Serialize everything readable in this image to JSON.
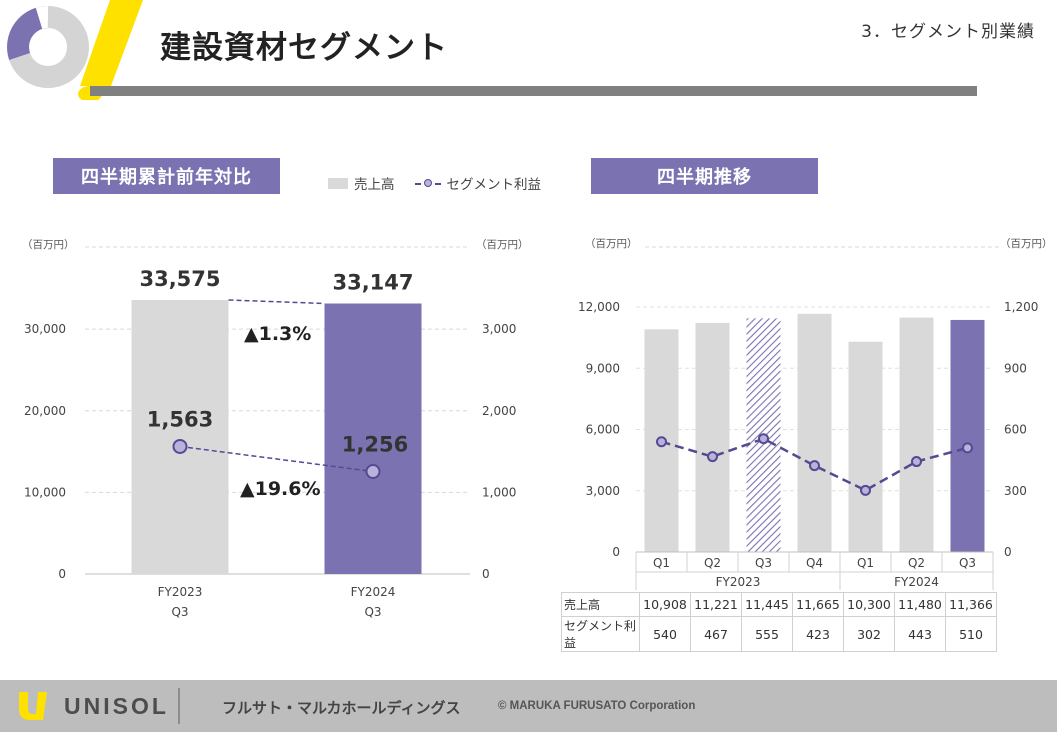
{
  "header": {
    "title": "建設資材セグメント",
    "section": "3．セグメント別業績"
  },
  "left_panel": {
    "label": "四半期累計前年対比",
    "legend": {
      "sales": "売上高",
      "profit": "セグメント利益"
    },
    "unit_left": "（百万円）",
    "unit_right": "（百万円）",
    "change_sales": "▲1.3%",
    "change_profit": "▲19.6%"
  },
  "right_panel": {
    "label": "四半期推移",
    "unit_left": "（百万円）",
    "unit_right": "（百万円）",
    "table": {
      "row1_label": "売上高",
      "row2_label": "セグメント利益"
    }
  },
  "chart_data": [
    {
      "type": "bar",
      "title": "四半期累計前年対比",
      "categories": [
        "FY2023 Q3",
        "FY2024 Q3"
      ],
      "category_lines": [
        [
          "FY2023",
          "Q3"
        ],
        [
          "FY2024",
          "Q3"
        ]
      ],
      "series": [
        {
          "name": "売上高",
          "axis": "left",
          "values": [
            33575,
            33147
          ],
          "labels": [
            "33,575",
            "33,147"
          ]
        },
        {
          "name": "セグメント利益",
          "type": "line",
          "axis": "right",
          "values": [
            1563,
            1256
          ],
          "labels": [
            "1,563",
            "1,256"
          ]
        }
      ],
      "ylim": [
        0,
        33575
      ],
      "yticks": [
        0,
        10000,
        20000,
        30000
      ],
      "ytick_labels": [
        "0",
        "10,000",
        "20,000",
        "30,000"
      ],
      "y2lim": [
        0,
        3357.5
      ],
      "y2ticks": [
        0,
        1000,
        2000,
        3000
      ],
      "y2tick_labels": [
        "0",
        "1,000",
        "2,000",
        "3,000"
      ],
      "colors": {
        "prev": "#d9d9d9",
        "curr": "#7b72b2",
        "line": "#554a91",
        "marker": "#b9b2db"
      }
    },
    {
      "type": "bar",
      "title": "四半期推移",
      "quarters": [
        "Q1",
        "Q2",
        "Q3",
        "Q4",
        "Q1",
        "Q2",
        "Q3"
      ],
      "fiscal_years": [
        {
          "label": "FY2023",
          "count": 4
        },
        {
          "label": "FY2024",
          "count": 3
        }
      ],
      "series": [
        {
          "name": "売上高",
          "axis": "left",
          "values": [
            10908,
            11221,
            11445,
            11665,
            10300,
            11480,
            11366
          ],
          "labels": [
            "10,908",
            "11,221",
            "11,445",
            "11,665",
            "10,300",
            "11,480",
            "11,366"
          ]
        },
        {
          "name": "セグメント利益",
          "type": "line",
          "axis": "right",
          "values": [
            540,
            467,
            555,
            423,
            302,
            443,
            510
          ],
          "labels": [
            "540",
            "467",
            "555",
            "423",
            "302",
            "443",
            "510"
          ]
        }
      ],
      "bar_styles": [
        "gray",
        "gray",
        "hatched",
        "gray",
        "gray",
        "gray",
        "highlight"
      ],
      "ylim": [
        0,
        12000
      ],
      "yticks": [
        0,
        3000,
        6000,
        9000,
        12000
      ],
      "ytick_labels": [
        "0",
        "3,000",
        "6,000",
        "9,000",
        "12,000"
      ],
      "y2lim": [
        0,
        1200
      ],
      "y2ticks": [
        0,
        300,
        600,
        900,
        1200
      ],
      "y2tick_labels": [
        "0",
        "300",
        "600",
        "900",
        "1,200"
      ],
      "colors": {
        "bar": "#d9d9d9",
        "highlight": "#7b72b2",
        "line": "#554a91",
        "marker": "#b9b2db"
      }
    }
  ],
  "footer": {
    "brand": "UNISOL",
    "company": "フルサト・マルカホールディングス",
    "copyright": "© MARUKA FURUSATO Corporation"
  }
}
